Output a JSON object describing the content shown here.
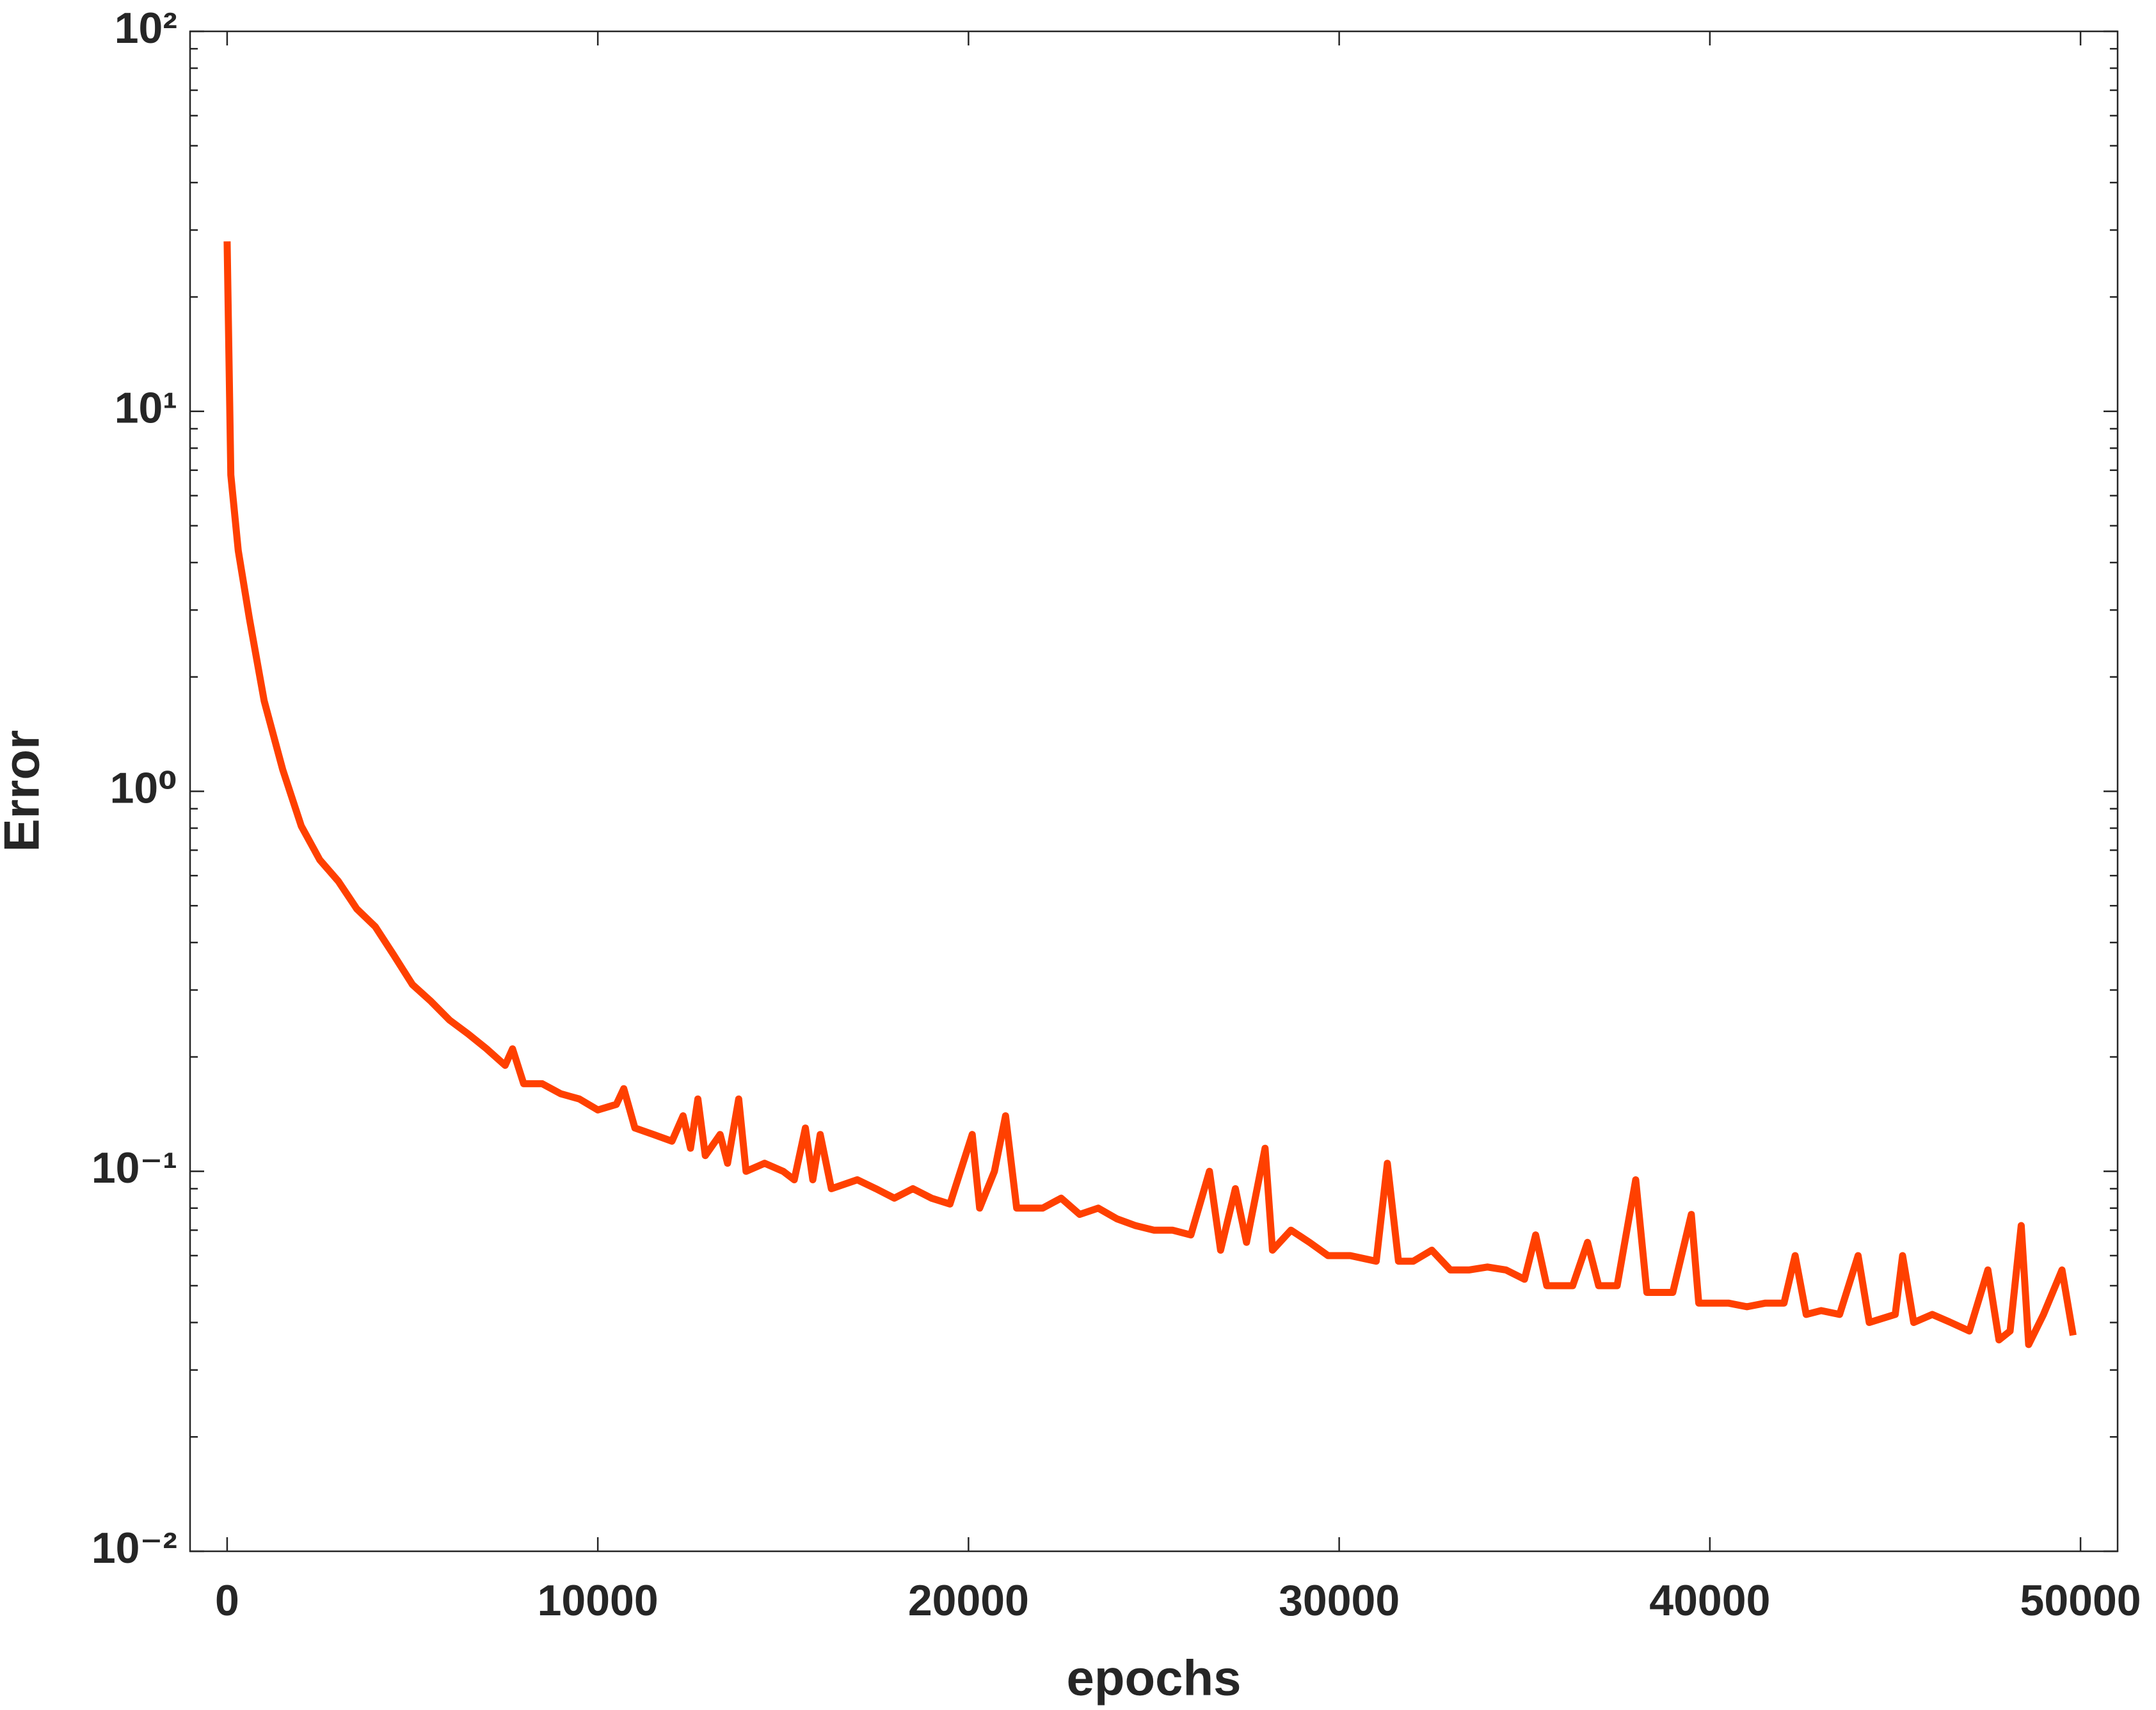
{
  "chart_data": {
    "type": "line",
    "xlabel": "epochs",
    "ylabel": "Error",
    "x": [
      0,
      100,
      300,
      600,
      1000,
      1500,
      2000,
      2500,
      3000,
      3500,
      4000,
      4500,
      5000,
      5500,
      6000,
      6500,
      7000,
      7500,
      7700,
      8000,
      8500,
      9000,
      9500,
      10000,
      10500,
      10700,
      11000,
      11500,
      12000,
      12300,
      12500,
      12700,
      12900,
      13300,
      13500,
      13800,
      14000,
      14500,
      15000,
      15300,
      15600,
      15800,
      16000,
      16300,
      17000,
      17500,
      18000,
      18500,
      19000,
      19500,
      20100,
      20300,
      20700,
      21000,
      21300,
      22000,
      22500,
      23000,
      23500,
      24000,
      24500,
      25000,
      25500,
      26000,
      26500,
      26800,
      27200,
      27500,
      28000,
      28200,
      28700,
      29200,
      29700,
      30300,
      31000,
      31300,
      31600,
      32000,
      32500,
      33000,
      33500,
      34000,
      34500,
      35000,
      35300,
      35600,
      36300,
      36700,
      37000,
      37500,
      38000,
      38300,
      39000,
      39500,
      39700,
      40000,
      40500,
      41000,
      41500,
      42000,
      42300,
      42600,
      43000,
      43500,
      44000,
      44300,
      45000,
      45200,
      45500,
      46000,
      46500,
      47000,
      47500,
      47800,
      48100,
      48400,
      48600,
      49000,
      49500,
      49800
    ],
    "series": [
      {
        "name": "Error",
        "color": "#ff4000",
        "values": [
          28,
          6.8,
          4.3,
          2.85,
          1.73,
          1.14,
          0.81,
          0.66,
          0.58,
          0.49,
          0.44,
          0.37,
          0.31,
          0.28,
          0.25,
          0.23,
          0.21,
          0.19,
          0.21,
          0.17,
          0.17,
          0.16,
          0.155,
          0.145,
          0.15,
          0.165,
          0.13,
          0.125,
          0.12,
          0.14,
          0.115,
          0.155,
          0.11,
          0.125,
          0.105,
          0.155,
          0.1,
          0.105,
          0.1,
          0.095,
          0.13,
          0.095,
          0.125,
          0.09,
          0.095,
          0.09,
          0.085,
          0.09,
          0.085,
          0.082,
          0.125,
          0.08,
          0.1,
          0.14,
          0.08,
          0.08,
          0.085,
          0.077,
          0.08,
          0.075,
          0.072,
          0.07,
          0.07,
          0.068,
          0.1,
          0.062,
          0.09,
          0.065,
          0.115,
          0.062,
          0.07,
          0.065,
          0.06,
          0.06,
          0.058,
          0.105,
          0.058,
          0.058,
          0.062,
          0.055,
          0.055,
          0.056,
          0.055,
          0.052,
          0.068,
          0.05,
          0.05,
          0.065,
          0.05,
          0.05,
          0.095,
          0.048,
          0.048,
          0.077,
          0.045,
          0.045,
          0.045,
          0.044,
          0.045,
          0.045,
          0.06,
          0.042,
          0.043,
          0.042,
          0.06,
          0.04,
          0.042,
          0.06,
          0.04,
          0.042,
          0.04,
          0.038,
          0.055,
          0.036,
          0.038,
          0.072,
          0.035,
          0.042,
          0.055,
          0.037
        ]
      }
    ],
    "xlim": [
      -1000,
      51000
    ],
    "xticks": [
      0,
      10000,
      20000,
      30000,
      40000,
      50000
    ],
    "ylim": [
      0.01,
      100
    ],
    "ylog": true,
    "yticks": [
      {
        "value": 0.01,
        "label": "10⁻²"
      },
      {
        "value": 0.1,
        "label": "10⁻¹"
      },
      {
        "value": 1,
        "label": "10⁰"
      },
      {
        "value": 10,
        "label": "10¹"
      },
      {
        "value": 100,
        "label": "10²"
      }
    ],
    "grid": false
  }
}
